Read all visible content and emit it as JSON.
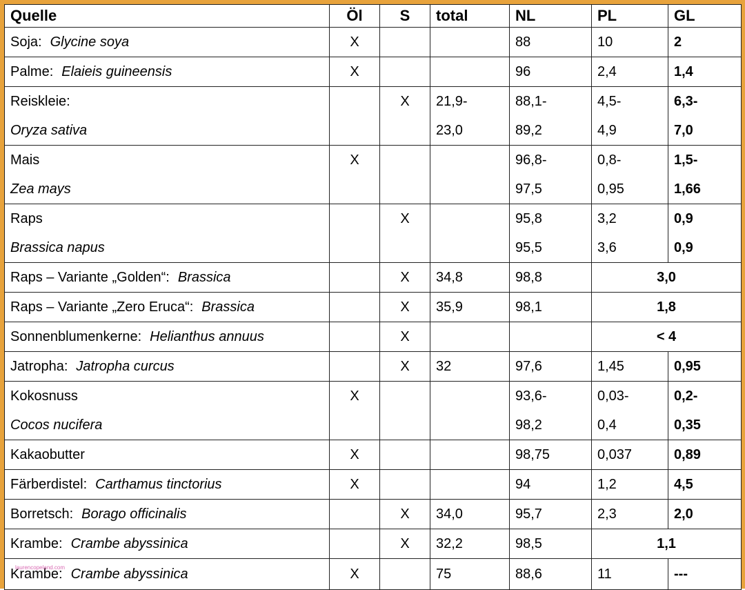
{
  "header": {
    "quelle": "Quelle",
    "oel": "Öl",
    "s": "S",
    "total": "total",
    "nl": "NL",
    "pl": "PL",
    "gl": "GL"
  },
  "rows": [
    {
      "name": "Soja:",
      "species": "Glycine soya",
      "oel": "X",
      "s": "",
      "total": "",
      "nl": "88",
      "pl": "10",
      "gl": "2"
    },
    {
      "name": "Palme:",
      "species": "Elaieis guineensis",
      "oel": "X",
      "s": "",
      "total": "",
      "nl": "96",
      "pl": "2,4",
      "gl": "1,4"
    },
    {
      "name": "Reiskleie:",
      "species": "Oryza sativa",
      "oel": "",
      "s": "X",
      "total1": "21,9-",
      "total2": "23,0",
      "nl1": "88,1-",
      "nl2": "89,2",
      "pl1": "4,5-",
      "pl2": "4,9",
      "gl1": "6,3-",
      "gl2": "7,0"
    },
    {
      "name": "Mais",
      "species": "Zea mays",
      "oel": "X",
      "s": "",
      "total1": "",
      "total2": "",
      "nl1": "96,8-",
      "nl2": "97,5",
      "pl1": "0,8-",
      "pl2": "0,95",
      "gl1": "1,5-",
      "gl2": "1,66"
    },
    {
      "name": "Raps",
      "species": "Brassica napus",
      "oel": "",
      "s": "X",
      "total1": "",
      "total2": "",
      "nl1": "95,8",
      "nl2": "95,5",
      "pl1": "3,2",
      "pl2": "3,6",
      "gl1": "0,9",
      "gl2": "0,9"
    },
    {
      "name": "Raps – Variante „Golden“:",
      "species": "Brassica",
      "oel": "",
      "s": "X",
      "total": "34,8",
      "nl": "98,8",
      "plgl": "3,0"
    },
    {
      "name": "Raps –  Variante „Zero Eruca“:",
      "species": "Brassica",
      "oel": "",
      "s": "X",
      "total": "35,9",
      "nl": "98,1",
      "plgl": "1,8"
    },
    {
      "name": "Sonnenblumenkerne:",
      "species": "Helianthus annuus",
      "oel": "",
      "s": "X",
      "total": "",
      "nl": "",
      "plgl": "< 4"
    },
    {
      "name": "Jatropha:",
      "species": "Jatropha curcus",
      "oel": "",
      "s": "X",
      "total": "32",
      "nl": "97,6",
      "pl": "1,45",
      "gl": "0,95"
    },
    {
      "name": "Kokosnuss",
      "species": "Cocos nucifera",
      "oel": "X",
      "s": "",
      "total1": "",
      "total2": "",
      "nl1": "93,6-",
      "nl2": "98,2",
      "pl1": "0,03-",
      "pl2": "0,4",
      "gl1": "0,2-",
      "gl2": "0,35"
    },
    {
      "name": "Kakaobutter",
      "species": "",
      "oel": "X",
      "s": "",
      "total": "",
      "nl": "98,75",
      "pl": "0,037",
      "gl": "0,89"
    },
    {
      "name": "Färberdistel:",
      "species": "Carthamus tinctorius",
      "oel": "X",
      "s": "",
      "total": "",
      "nl": "94",
      "pl": "1,2",
      "gl": "4,5"
    },
    {
      "name": "Borretsch:",
      "species": "Borago officinalis",
      "oel": "",
      "s": "X",
      "total": "34,0",
      "nl": "95,7",
      "pl": "2,3",
      "gl": "2,0"
    },
    {
      "name": "Krambe:",
      "species": "Crambe abyssinica",
      "oel": "",
      "s": "X",
      "total": "32,2",
      "nl": "98,5",
      "plgl": "1,1"
    },
    {
      "name": "Krambe:",
      "species": "Crambe abyssinica",
      "oel": "X",
      "s": "",
      "total": "75",
      "nl": "88,6",
      "pl": "11",
      "gl": "---"
    }
  ],
  "watermark": "laurencopeland.com"
}
